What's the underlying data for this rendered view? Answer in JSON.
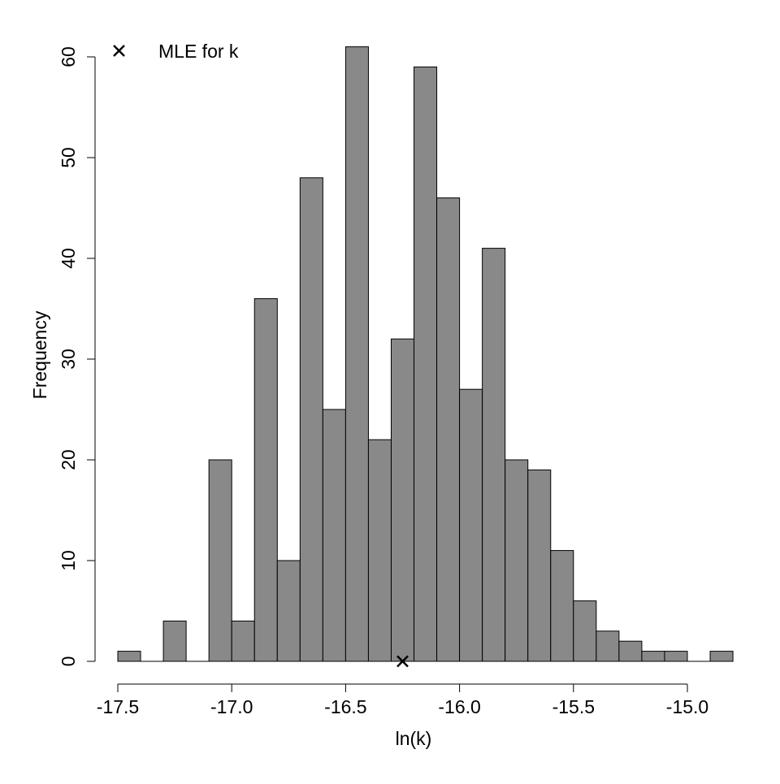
{
  "chart_data": {
    "type": "bar",
    "subtype": "histogram",
    "title": "",
    "xlabel": "ln(k)",
    "ylabel": "Frequency",
    "bin_width": 0.1,
    "bin_start": -17.5,
    "bin_edges": [
      -17.5,
      -17.4,
      -17.3,
      -17.2,
      -17.1,
      -17.0,
      -16.9,
      -16.8,
      -16.7,
      -16.6,
      -16.5,
      -16.4,
      -16.3,
      -16.2,
      -16.1,
      -16.0,
      -15.9,
      -15.8,
      -15.7,
      -15.6,
      -15.5,
      -15.4,
      -15.3,
      -15.2,
      -15.1,
      -15.0,
      -14.9,
      -14.8
    ],
    "values": [
      1,
      0,
      4,
      0,
      20,
      4,
      36,
      10,
      48,
      25,
      61,
      22,
      32,
      59,
      46,
      27,
      41,
      20,
      19,
      11,
      6,
      3,
      2,
      1,
      1,
      0,
      1
    ],
    "xlim": [
      -17.5,
      -14.8
    ],
    "ylim": [
      0,
      60
    ],
    "xticks": [
      -17.5,
      -17.0,
      -16.5,
      -16.0,
      -15.5,
      -15.0
    ],
    "xtick_labels": [
      "-17.5",
      "-17.0",
      "-16.5",
      "-16.0",
      "-15.5",
      "-15.0"
    ],
    "yticks": [
      0,
      10,
      20,
      30,
      40,
      50,
      60
    ],
    "ytick_labels": [
      "0",
      "10",
      "20",
      "30",
      "40",
      "50",
      "60"
    ],
    "bar_color": "#898989",
    "grid": false,
    "mle": {
      "x": -16.25,
      "y": 0,
      "marker": "x"
    },
    "legend": {
      "position": "top-left",
      "entries": [
        {
          "label": "MLE for k",
          "marker": "x"
        }
      ]
    }
  }
}
